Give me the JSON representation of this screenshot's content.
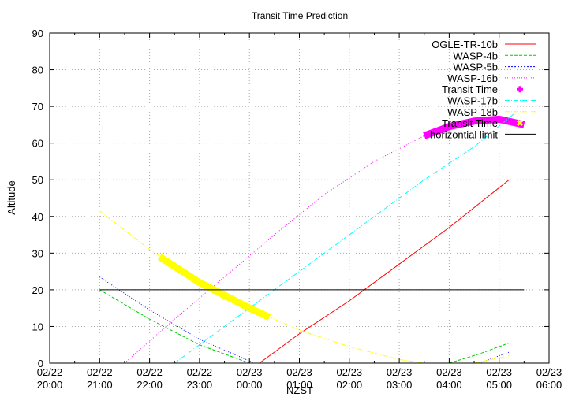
{
  "chart_data": {
    "type": "line",
    "title": "Transit Time Prediction",
    "xlabel": "NZST",
    "ylabel": "Altitude",
    "ylim": [
      0,
      90
    ],
    "xlim_hours_after_start": [
      0,
      10
    ],
    "grid": true,
    "legend_position": "top-right (inside)",
    "y_ticks": [
      "0",
      "10",
      "20",
      "30",
      "40",
      "50",
      "60",
      "70",
      "80",
      "90"
    ],
    "x_ticks": [
      {
        "date": "02/22",
        "time": "20:00"
      },
      {
        "date": "02/22",
        "time": "21:00"
      },
      {
        "date": "02/22",
        "time": "22:00"
      },
      {
        "date": "02/22",
        "time": "23:00"
      },
      {
        "date": "02/23",
        "time": "00:00"
      },
      {
        "date": "02/23",
        "time": "01:00"
      },
      {
        "date": "02/23",
        "time": "02:00"
      },
      {
        "date": "02/23",
        "time": "03:00"
      },
      {
        "date": "02/23",
        "time": "04:00"
      },
      {
        "date": "02/23",
        "time": "05:00"
      },
      {
        "date": "02/23",
        "time": "06:00"
      }
    ],
    "series": [
      {
        "name": "OGLE-TR-10b",
        "color": "#ff0000",
        "style": "solid",
        "x": [
          4.2,
          5.0,
          6.0,
          7.0,
          8.0,
          9.2
        ],
        "y": [
          0,
          8,
          17,
          27,
          37,
          50
        ]
      },
      {
        "name": "WASP-4b",
        "color": "#00cc00",
        "style": "dashed",
        "x": [
          1.0,
          2.0,
          3.0,
          4.0,
          8.0,
          8.6,
          9.2
        ],
        "y": [
          20,
          12,
          5,
          0,
          0,
          2.5,
          5.5
        ]
      },
      {
        "name": "WASP-5b",
        "color": "#0000ff",
        "style": "dotted",
        "x": [
          1.0,
          2.0,
          3.0,
          4.1,
          8.6,
          9.2
        ],
        "y": [
          23.5,
          14.5,
          6.5,
          0,
          0,
          3
        ]
      },
      {
        "name": "WASP-16b",
        "color": "#ff00ff",
        "style": "dotted",
        "x": [
          1.5,
          2.5,
          3.5,
          4.5,
          5.5,
          6.5,
          7.5
        ],
        "y": [
          0,
          12,
          23.5,
          35,
          46,
          55,
          62
        ]
      },
      {
        "name": "Transit Time",
        "color": "#ff00ff",
        "style": "thick-points",
        "marker": "+",
        "x": [
          7.5,
          8.0,
          8.5,
          9.0,
          9.5
        ],
        "y": [
          62,
          64.5,
          66,
          66.5,
          65
        ]
      },
      {
        "name": "WASP-17b",
        "color": "#00ffff",
        "style": "dash-dot",
        "x": [
          2.5,
          3.5,
          4.5,
          5.5,
          6.5,
          7.5,
          8.5,
          9.3
        ],
        "y": [
          0,
          10,
          20,
          30,
          40,
          50,
          59,
          68
        ]
      },
      {
        "name": "WASP-18b",
        "color": "#ffff00",
        "style": "dash-dot",
        "x": [
          1.0,
          2.0,
          3.0,
          4.0,
          5.0,
          6.0,
          7.0,
          7.5,
          8.5,
          9.2
        ],
        "y": [
          41.5,
          31,
          22,
          15,
          9,
          4.5,
          1,
          0,
          0,
          2
        ]
      },
      {
        "name": "Transit Time",
        "color": "#ffff00",
        "style": "thick-points",
        "marker": "x",
        "x": [
          2.2,
          3.0,
          4.0,
          4.4
        ],
        "y": [
          29,
          22,
          15,
          12.5
        ]
      },
      {
        "name": "horizontial limit",
        "color": "#000000",
        "style": "solid",
        "x": [
          1.0,
          9.5
        ],
        "y": [
          20,
          20
        ]
      }
    ]
  },
  "legend": [
    {
      "label": "OGLE-TR-10b",
      "color": "#ff0000",
      "kind": "line",
      "dash": ""
    },
    {
      "label": "WASP-4b",
      "color": "#00cc00",
      "kind": "line",
      "dash": "4,2"
    },
    {
      "label": "WASP-5b",
      "color": "#0000ff",
      "kind": "line",
      "dash": "2,2"
    },
    {
      "label": "WASP-16b",
      "color": "#ff00ff",
      "kind": "line",
      "dash": "1,2"
    },
    {
      "label": "Transit Time",
      "color": "#ff00ff",
      "kind": "plus",
      "dash": ""
    },
    {
      "label": "WASP-17b",
      "color": "#00ffff",
      "kind": "line",
      "dash": "6,2,1,2"
    },
    {
      "label": "WASP-18b",
      "color": "#ffff00",
      "kind": "line",
      "dash": "6,2,1,2"
    },
    {
      "label": "Transit Time",
      "color": "#ffff00",
      "kind": "cross",
      "dash": ""
    },
    {
      "label": "horizontial limit",
      "color": "#000000",
      "kind": "line",
      "dash": ""
    }
  ]
}
